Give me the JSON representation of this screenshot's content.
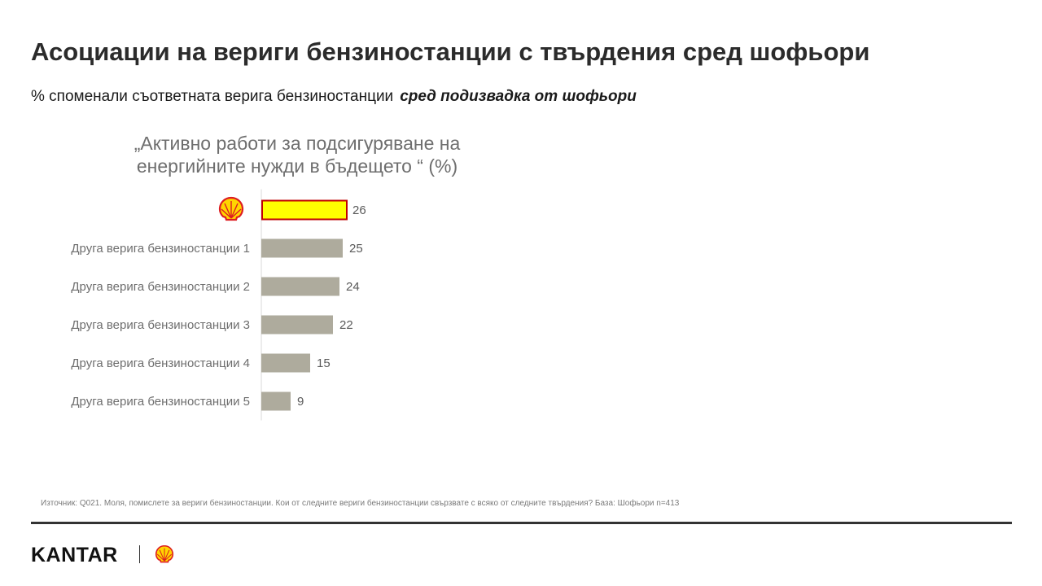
{
  "page": {
    "title": "Асоциации на вериги бензиностанции с твърдения сред шофьори",
    "subtitle_plain": "% споменали  съответната верига бензиностанции",
    "subtitle_emph": "сред подизвадка от шофьори",
    "source": "Източник: Q021. Моля, помислете за вериги бензиностанции. Кои от следните вериги бензиностанции свързвате с всяко от следните твърдения? База: Шофьори n=413",
    "brand": "KANTAR"
  },
  "icons": {
    "category_logo": "shell-logo-icon",
    "footer_logo": "shell-logo-icon"
  },
  "colors": {
    "highlight_bar": "#ffff00",
    "highlight_border": "#c00000",
    "other_bars": "#aeab9d",
    "logo_yellow": "#ffd500",
    "logo_red": "#dd1d21"
  },
  "chart_data": {
    "type": "bar",
    "orientation": "horizontal",
    "title": "„Активно работи за подсигуряване на енергийните нужди в бъдещето “ (%)",
    "categories": [
      "Shell",
      "Друга верига бензиностанции  1",
      "Друга верига бензиностанции  2",
      "Друга верига бензиностанции  3",
      "Друга верига бензиностанции  4",
      "Друга верига бензиностанции  5"
    ],
    "category_label_visible": [
      false,
      true,
      true,
      true,
      true,
      true
    ],
    "values": [
      26,
      25,
      24,
      22,
      15,
      9
    ],
    "xlim": [
      0,
      100
    ],
    "grid": false,
    "legend": "none",
    "data_labels": true
  }
}
